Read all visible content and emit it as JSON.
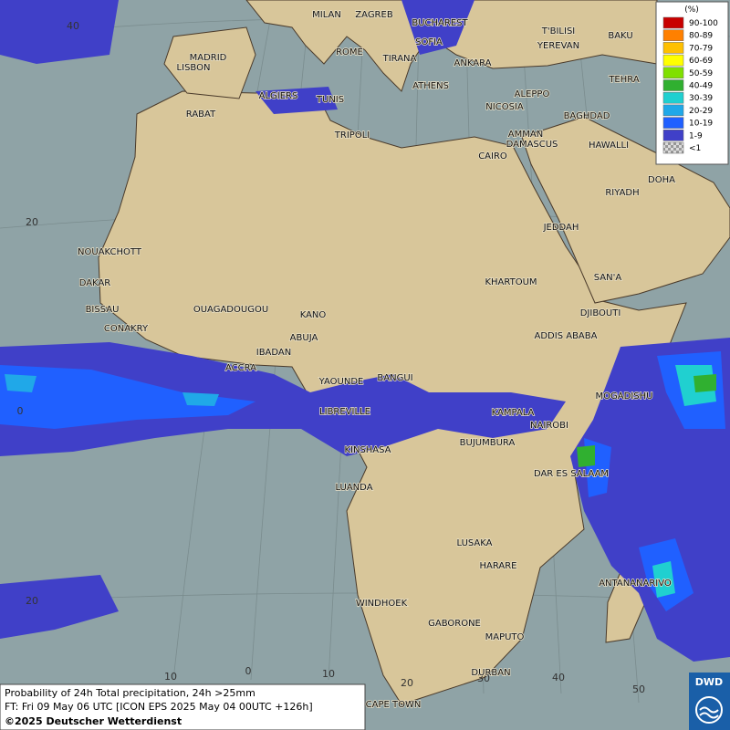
{
  "map": {
    "info": {
      "line1": "Probability of 24h Total precipitation, 24h >25mm",
      "line2": "FT: Fri 09 May 06 UTC [ICON EPS 2025 May 04 00UTC +126h]",
      "line3": "©2025 Deutscher Wetterdienst"
    },
    "logo": "DWD",
    "legend": {
      "title": "(%)",
      "entries": [
        {
          "label": "90-100",
          "color": "#c80000"
        },
        {
          "label": "80-89",
          "color": "#ff8000"
        },
        {
          "label": "70-79",
          "color": "#ffc000"
        },
        {
          "label": "60-69",
          "color": "#ffff00"
        },
        {
          "label": "50-59",
          "color": "#80e000"
        },
        {
          "label": "40-49",
          "color": "#30b030"
        },
        {
          "label": "30-39",
          "color": "#20d0d0"
        },
        {
          "label": "20-29",
          "color": "#20a8e8"
        },
        {
          "label": "10-19",
          "color": "#2060ff"
        },
        {
          "label": "1-9",
          "color": "#4040c8"
        },
        {
          "label": "<1",
          "color": "checker"
        }
      ]
    },
    "graticule_labels": [
      "40",
      "20",
      "0",
      "20",
      "10",
      "0",
      "10",
      "20",
      "30",
      "40",
      "50"
    ],
    "cities": [
      "MILAN",
      "ZAGREB",
      "BUCHAREST",
      "T'BILISI",
      "BAKU",
      "YEREVAN",
      "TEHRA",
      "MADRID",
      "ROME",
      "SOFIA",
      "LISBON",
      "TIRANA",
      "ANKARA",
      "ATHENS",
      "ALGIERS",
      "TUNIS",
      "RABAT",
      "ALEPPO",
      "NICOSIA",
      "BAGHDAD",
      "DAMASCUS",
      "AMMAN",
      "TRIPOLI",
      "CAIRO",
      "HAWALLI",
      "DOHA",
      "RIYADH",
      "NOUAKCHOTT",
      "JEDDAH",
      "DAKAR",
      "SAN'A",
      "KHARTOUM",
      "BISSAU",
      "OUAGADOUGOU",
      "KANO",
      "DJIBOUTI",
      "CONAKRY",
      "ABUJA",
      "ADDIS ABABA",
      "IBADAN",
      "ACCRA",
      "YAOUNDE",
      "BANGUI",
      "MOGADISHU",
      "LIBREVILLE",
      "KAMPALA",
      "NAIROBI",
      "KINSHASA",
      "BUJUMBURA",
      "DAR ES SALAAM",
      "LUANDA",
      "LUSAKA",
      "HARARE",
      "ANTANANARIVO",
      "WINDHOEK",
      "GABORONE",
      "MAPUTO",
      "DURBAN",
      "CAPE TOWN"
    ]
  }
}
